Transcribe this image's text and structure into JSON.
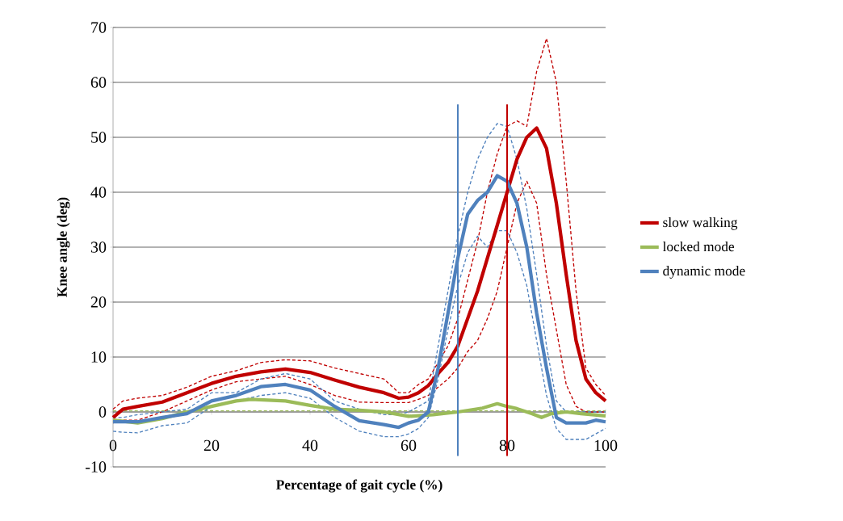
{
  "chart_data": {
    "type": "line",
    "xlabel": "Percentage of gait cycle (%)",
    "ylabel": "Knee angle (deg)",
    "xlim": [
      0,
      100
    ],
    "xticks": [
      0,
      20,
      40,
      60,
      80,
      100
    ],
    "ylim": [
      -10,
      70
    ],
    "yticks": [
      -10,
      0,
      10,
      20,
      30,
      40,
      50,
      60,
      70
    ],
    "grid": "y",
    "legend": "right",
    "line_style": "solid",
    "marker": "none",
    "ref_lines": [
      {
        "axis": "x",
        "value": 70,
        "color": "#4f81bd"
      },
      {
        "axis": "x",
        "value": 80,
        "color": "#c00000"
      }
    ],
    "series": [
      {
        "color": "#c00000",
        "line_style": "dashed",
        "x": [
          0,
          2,
          5,
          10,
          15,
          20,
          25,
          30,
          35,
          40,
          45,
          50,
          55,
          58,
          60,
          62,
          64,
          66,
          68,
          70,
          72,
          74,
          76,
          78,
          80,
          82,
          84,
          86,
          88,
          90,
          92,
          94,
          96,
          98,
          100
        ],
        "values": [
          0.5,
          2,
          2.5,
          3,
          4.5,
          6.5,
          7.5,
          9,
          9.5,
          9.3,
          8,
          7,
          6,
          3.5,
          3.5,
          5,
          6,
          9,
          12,
          17,
          24,
          31,
          40,
          47,
          52,
          53,
          52,
          62,
          68,
          60,
          42,
          22,
          8,
          5,
          3
        ]
      },
      {
        "color": "#c00000",
        "line_style": "dashed",
        "x": [
          0,
          2,
          5,
          10,
          15,
          20,
          25,
          30,
          35,
          40,
          45,
          50,
          55,
          58,
          60,
          62,
          64,
          66,
          68,
          70,
          72,
          74,
          76,
          78,
          80,
          82,
          84,
          86,
          88,
          90,
          92,
          94,
          96,
          98,
          100
        ],
        "values": [
          -2,
          -1.5,
          -1.5,
          0,
          2,
          4,
          5.5,
          6,
          6.5,
          5,
          3,
          1.8,
          1.7,
          1.7,
          1.7,
          2.3,
          3,
          4.5,
          6,
          8,
          11,
          13,
          17,
          22,
          30,
          38,
          42,
          38,
          25,
          15,
          5,
          1,
          0,
          0,
          0
        ]
      },
      {
        "color": "#9bbb59",
        "line_style": "dashed",
        "x": [
          0,
          100
        ],
        "values": [
          0.2,
          0.2
        ]
      },
      {
        "color": "#4f81bd",
        "line_style": "dashed",
        "x": [
          0,
          2,
          5,
          10,
          15,
          20,
          25,
          30,
          35,
          40,
          45,
          50,
          55,
          58,
          60,
          62,
          64,
          66,
          68,
          70,
          72,
          74,
          76,
          78,
          80,
          82,
          84,
          86,
          88,
          90,
          92,
          94,
          96,
          98,
          100
        ],
        "values": [
          -1,
          -1,
          -0.5,
          0,
          0.5,
          3.5,
          3.5,
          6,
          7,
          6,
          2,
          0.5,
          -0.5,
          -0.5,
          0,
          1,
          2,
          12,
          22,
          32,
          40,
          46,
          50,
          52.5,
          52,
          46,
          37,
          25,
          12,
          2,
          0,
          0,
          0,
          0,
          0
        ]
      },
      {
        "color": "#4f81bd",
        "line_style": "dashed",
        "x": [
          0,
          2,
          5,
          10,
          15,
          20,
          25,
          30,
          35,
          40,
          45,
          50,
          55,
          58,
          60,
          62,
          64,
          66,
          68,
          70,
          72,
          74,
          76,
          78,
          80,
          82,
          84,
          86,
          88,
          90,
          92,
          94,
          96,
          98,
          100
        ],
        "values": [
          -3.5,
          -3.7,
          -3.8,
          -2.5,
          -2,
          1,
          2,
          3,
          3.5,
          2.5,
          -1,
          -3.5,
          -4.5,
          -4.5,
          -4,
          -3,
          -1,
          6,
          15,
          23,
          29,
          32,
          30,
          33,
          33,
          29,
          23,
          13,
          3,
          -3,
          -5,
          -5,
          -5,
          -4,
          -3
        ]
      },
      {
        "name": "slow walking",
        "color": "#c00000",
        "x": [
          0,
          2,
          5,
          10,
          15,
          20,
          25,
          30,
          35,
          40,
          45,
          50,
          55,
          58,
          60,
          62,
          64,
          66,
          68,
          70,
          72,
          74,
          76,
          78,
          80,
          82,
          84,
          86,
          88,
          90,
          92,
          94,
          96,
          98,
          100
        ],
        "values": [
          -1,
          0.5,
          1,
          1.8,
          3.5,
          5.2,
          6.5,
          7.3,
          7.8,
          7.2,
          5.8,
          4.5,
          3.5,
          2.5,
          2.7,
          3.5,
          4.8,
          7,
          9,
          12,
          17,
          22,
          28,
          34,
          40,
          46,
          50,
          51.7,
          48,
          38,
          25,
          13,
          6,
          3.5,
          2
        ]
      },
      {
        "name": "locked mode",
        "color": "#9bbb59",
        "x": [
          0,
          5,
          10,
          15,
          20,
          25,
          28,
          35,
          40,
          45,
          50,
          55,
          60,
          65,
          70,
          75,
          78,
          80,
          82,
          85,
          87,
          89,
          92,
          95,
          100
        ],
        "values": [
          -1.5,
          -2,
          -1.2,
          0,
          1,
          2,
          2.3,
          2,
          1.2,
          0.5,
          0.3,
          0,
          -0.8,
          -0.5,
          0,
          0.7,
          1.5,
          1,
          0.6,
          -0.3,
          -1,
          -0.3,
          0,
          -0.3,
          -0.7
        ]
      },
      {
        "name": "dynamic mode",
        "color": "#4f81bd",
        "x": [
          0,
          2,
          5,
          10,
          15,
          20,
          25,
          30,
          35,
          40,
          45,
          50,
          55,
          58,
          60,
          62,
          64,
          66,
          68,
          70,
          72,
          74,
          76,
          78,
          80,
          82,
          84,
          86,
          88,
          90,
          92,
          94,
          96,
          98,
          100
        ],
        "values": [
          -1.8,
          -1.8,
          -1.8,
          -1,
          -0.3,
          2,
          3,
          4.6,
          5,
          4,
          1,
          -1.6,
          -2.3,
          -2.8,
          -2,
          -1.5,
          0,
          8,
          18,
          28,
          36,
          38.5,
          40,
          43,
          42,
          38,
          30,
          18,
          8,
          -1,
          -2,
          -2,
          -2,
          -1.5,
          -1.8
        ]
      }
    ]
  }
}
